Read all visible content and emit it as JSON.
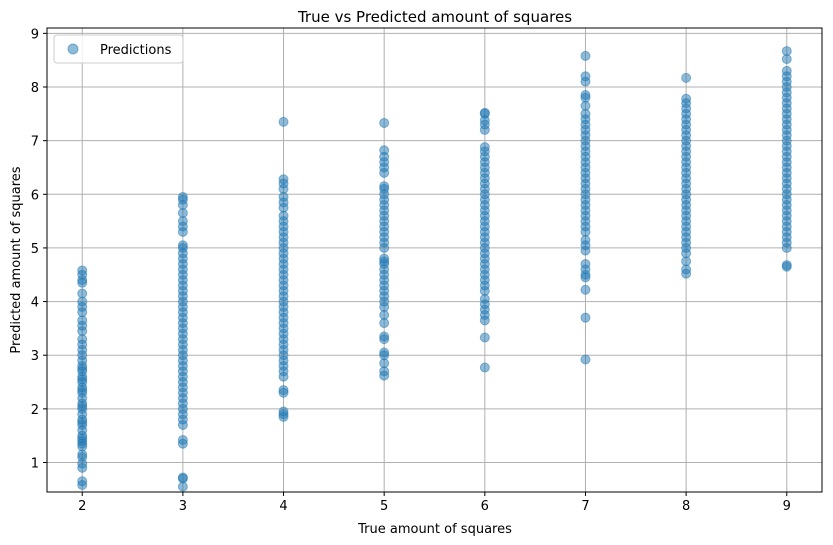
{
  "chart_data": {
    "type": "scatter",
    "title": "True vs Predicted amount of squares",
    "xlabel": "True amount of squares",
    "ylabel": "Predicted amount of squares",
    "xlim": [
      1.65,
      9.35
    ],
    "ylim": [
      0.45,
      9.1
    ],
    "xticks": [
      2,
      3,
      4,
      5,
      6,
      7,
      8,
      9
    ],
    "yticks": [
      1,
      2,
      3,
      4,
      5,
      6,
      7,
      8,
      9
    ],
    "grid": true,
    "legend": "top-left",
    "point_color": "#1f77b4",
    "point_alpha": 0.5,
    "series": [
      {
        "name": "Predictions",
        "points": [
          {
            "x": 2,
            "values": [
              0.58,
              0.65,
              0.9,
              0.98,
              1.1,
              1.15,
              1.3,
              1.35,
              1.4,
              1.45,
              1.5,
              1.6,
              1.7,
              1.75,
              1.8,
              1.9,
              2.0,
              2.05,
              2.1,
              2.2,
              2.3,
              2.35,
              2.4,
              2.5,
              2.55,
              2.6,
              2.7,
              2.75,
              2.8,
              2.9,
              3.0,
              3.1,
              3.2,
              3.3,
              3.45,
              3.55,
              3.65,
              3.8,
              3.9,
              4.0,
              4.15,
              4.35,
              4.4,
              4.5,
              4.58
            ]
          },
          {
            "x": 3,
            "values": [
              0.55,
              0.7,
              0.72,
              1.35,
              1.42,
              1.7,
              1.8,
              1.9,
              2.0,
              2.1,
              2.2,
              2.3,
              2.4,
              2.5,
              2.6,
              2.7,
              2.8,
              2.9,
              3.0,
              3.1,
              3.2,
              3.3,
              3.4,
              3.5,
              3.6,
              3.7,
              3.8,
              3.9,
              4.0,
              4.1,
              4.2,
              4.3,
              4.4,
              4.5,
              4.6,
              4.7,
              4.8,
              4.9,
              5.0,
              5.05,
              5.3,
              5.4,
              5.5,
              5.65,
              5.8,
              5.9,
              5.95
            ]
          },
          {
            "x": 4,
            "values": [
              1.85,
              1.9,
              1.95,
              2.3,
              2.35,
              2.6,
              2.7,
              2.8,
              2.9,
              3.0,
              3.1,
              3.2,
              3.3,
              3.4,
              3.5,
              3.6,
              3.7,
              3.8,
              3.9,
              4.0,
              4.1,
              4.2,
              4.3,
              4.4,
              4.5,
              4.6,
              4.7,
              4.8,
              4.9,
              5.0,
              5.1,
              5.2,
              5.3,
              5.4,
              5.5,
              5.6,
              5.75,
              5.85,
              5.95,
              6.1,
              6.2,
              6.28,
              7.35
            ]
          },
          {
            "x": 5,
            "values": [
              2.62,
              2.7,
              2.85,
              3.0,
              3.05,
              3.3,
              3.35,
              3.6,
              3.75,
              3.9,
              4.0,
              4.1,
              4.2,
              4.3,
              4.4,
              4.5,
              4.6,
              4.7,
              4.75,
              4.8,
              5.0,
              5.1,
              5.2,
              5.3,
              5.4,
              5.5,
              5.6,
              5.7,
              5.8,
              5.9,
              6.0,
              6.1,
              6.15,
              6.4,
              6.5,
              6.6,
              6.7,
              6.82,
              7.33
            ]
          },
          {
            "x": 6,
            "values": [
              2.77,
              3.33,
              3.65,
              3.75,
              3.85,
              3.95,
              4.05,
              4.2,
              4.3,
              4.4,
              4.5,
              4.6,
              4.7,
              4.8,
              4.9,
              5.0,
              5.1,
              5.2,
              5.3,
              5.4,
              5.5,
              5.6,
              5.7,
              5.8,
              5.9,
              6.0,
              6.1,
              6.2,
              6.3,
              6.4,
              6.5,
              6.6,
              6.7,
              6.8,
              6.88,
              7.2,
              7.3,
              7.38,
              7.5,
              7.52
            ]
          },
          {
            "x": 7,
            "values": [
              2.92,
              3.7,
              4.22,
              4.45,
              4.5,
              4.6,
              4.7,
              4.95,
              5.05,
              5.15,
              5.3,
              5.4,
              5.5,
              5.6,
              5.7,
              5.8,
              5.9,
              6.0,
              6.1,
              6.2,
              6.3,
              6.4,
              6.5,
              6.6,
              6.7,
              6.8,
              6.9,
              7.0,
              7.1,
              7.2,
              7.3,
              7.4,
              7.5,
              7.65,
              7.8,
              7.85,
              8.1,
              8.2,
              8.58
            ]
          },
          {
            "x": 8,
            "values": [
              4.52,
              4.6,
              4.75,
              4.9,
              5.0,
              5.1,
              5.2,
              5.3,
              5.4,
              5.5,
              5.6,
              5.7,
              5.8,
              5.9,
              6.0,
              6.1,
              6.2,
              6.3,
              6.4,
              6.5,
              6.6,
              6.7,
              6.8,
              6.9,
              7.0,
              7.1,
              7.2,
              7.3,
              7.4,
              7.5,
              7.6,
              7.7,
              7.78,
              8.17
            ]
          },
          {
            "x": 9,
            "values": [
              4.65,
              4.68,
              5.0,
              5.1,
              5.2,
              5.3,
              5.4,
              5.5,
              5.6,
              5.7,
              5.8,
              5.9,
              6.0,
              6.1,
              6.2,
              6.3,
              6.4,
              6.5,
              6.6,
              6.7,
              6.8,
              6.9,
              7.0,
              7.1,
              7.2,
              7.3,
              7.4,
              7.5,
              7.6,
              7.7,
              7.8,
              7.9,
              8.0,
              8.1,
              8.2,
              8.3,
              8.52,
              8.67
            ]
          }
        ]
      }
    ]
  }
}
